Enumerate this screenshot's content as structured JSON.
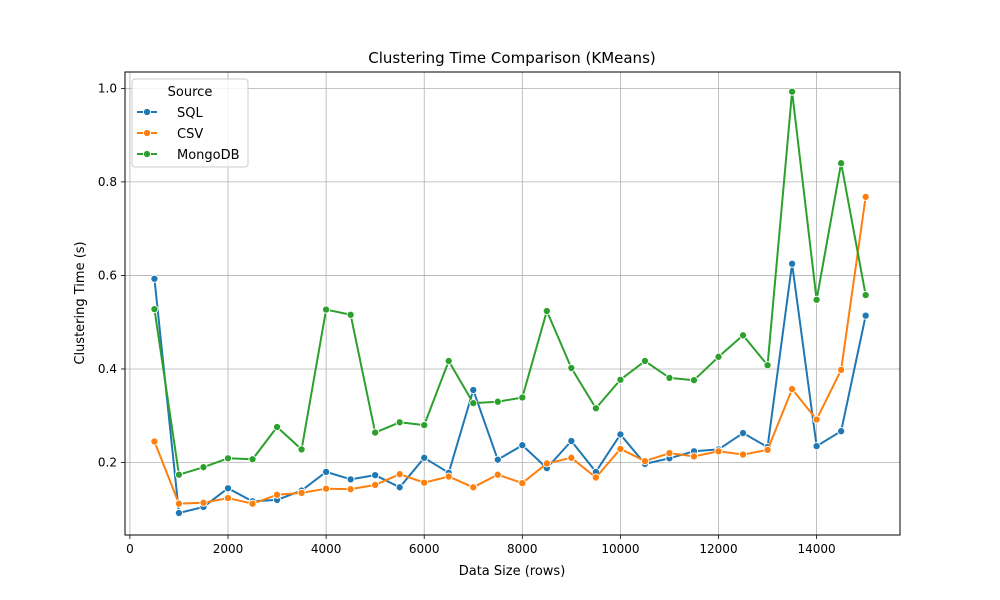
{
  "chart_data": {
    "type": "line",
    "title": "Clustering Time Comparison (KMeans)",
    "xlabel": "Data Size (rows)",
    "ylabel": "Clustering Time (s)",
    "xlim": [
      -100,
      15700
    ],
    "ylim": [
      0.045,
      1.035
    ],
    "xticks": [
      0,
      2000,
      4000,
      6000,
      8000,
      10000,
      12000,
      14000
    ],
    "yticks": [
      0.2,
      0.4,
      0.6,
      0.8,
      1.0
    ],
    "xtick_labels": [
      "0",
      "2000",
      "4000",
      "6000",
      "8000",
      "10000",
      "12000",
      "14000"
    ],
    "ytick_labels": [
      "0.2",
      "0.4",
      "0.6",
      "0.8",
      "1.0"
    ],
    "grid": true,
    "legend": {
      "title": "Source",
      "placement": "top-left"
    },
    "x": [
      500,
      1000,
      1500,
      2000,
      2500,
      3000,
      3500,
      4000,
      4500,
      5000,
      5500,
      6000,
      6500,
      7000,
      7500,
      8000,
      8500,
      9000,
      9500,
      10000,
      10500,
      11000,
      11500,
      12000,
      12500,
      13000,
      13500,
      14000,
      14500,
      15000
    ],
    "series": [
      {
        "name": "SQL",
        "color": "#1f77b4",
        "values": [
          0.593,
          0.092,
          0.105,
          0.145,
          0.117,
          0.12,
          0.14,
          0.18,
          0.164,
          0.173,
          0.147,
          0.21,
          0.178,
          0.355,
          0.206,
          0.237,
          0.188,
          0.246,
          0.18,
          0.26,
          0.197,
          0.209,
          0.224,
          0.228,
          0.263,
          0.233,
          0.625,
          0.235,
          0.267,
          0.514
        ]
      },
      {
        "name": "CSV",
        "color": "#ff7f0e",
        "values": [
          0.245,
          0.112,
          0.114,
          0.124,
          0.112,
          0.131,
          0.135,
          0.144,
          0.143,
          0.152,
          0.175,
          0.157,
          0.17,
          0.147,
          0.174,
          0.156,
          0.198,
          0.21,
          0.168,
          0.229,
          0.203,
          0.22,
          0.213,
          0.224,
          0.217,
          0.227,
          0.357,
          0.292,
          0.398,
          0.768
        ]
      },
      {
        "name": "MongoDB",
        "color": "#2ca02c",
        "values": [
          0.528,
          0.174,
          0.19,
          0.209,
          0.207,
          0.276,
          0.228,
          0.527,
          0.516,
          0.264,
          0.286,
          0.28,
          0.417,
          0.327,
          0.33,
          0.339,
          0.524,
          0.402,
          0.316,
          0.377,
          0.417,
          0.381,
          0.376,
          0.426,
          0.472,
          0.408,
          0.993,
          0.548,
          0.84,
          0.558
        ]
      }
    ]
  }
}
